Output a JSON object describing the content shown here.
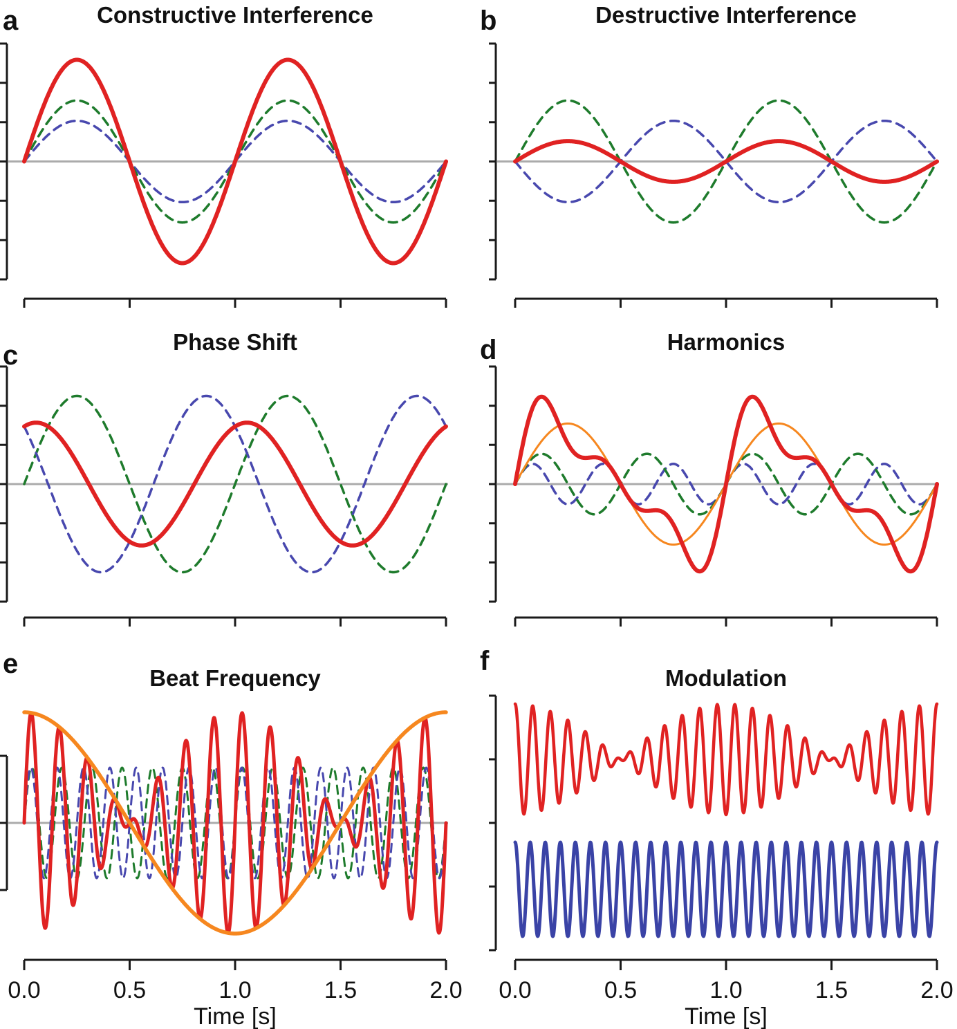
{
  "figure": {
    "xlabel": "Time [s]",
    "xticks": [
      "0.0",
      "0.5",
      "1.0",
      "1.5",
      "2.0"
    ]
  },
  "colors": {
    "red": "#E02222",
    "green": "#1E7B2C",
    "blue": "#4848AE",
    "orange": "#F6871F",
    "blue_solid": "#3A43A6",
    "zero_line": "#ABABAB",
    "axis": "#1A1A1A"
  },
  "chart_data": [
    {
      "id": "a",
      "label": "a",
      "title": "Constructive Interference",
      "type": "line",
      "xlim": [
        0,
        2
      ],
      "ylim": 2.9,
      "zero_line": true,
      "series": [
        {
          "name": "component-wave-1",
          "color": "blue",
          "dash": true,
          "width": 3.5,
          "kind": "sum",
          "terms": [
            {
              "a": 1.0,
              "f": 1,
              "p": 0
            }
          ]
        },
        {
          "name": "component-wave-2",
          "color": "green",
          "dash": true,
          "width": 3.5,
          "kind": "sum",
          "terms": [
            {
              "a": 1.5,
              "f": 1,
              "p": 0
            }
          ]
        },
        {
          "name": "sum-wave",
          "color": "red",
          "dash": false,
          "width": 6,
          "kind": "sum",
          "terms": [
            {
              "a": 2.5,
              "f": 1,
              "p": 0
            }
          ]
        }
      ]
    },
    {
      "id": "b",
      "label": "b",
      "title": "Destructive Interference",
      "type": "line",
      "xlim": [
        0,
        2
      ],
      "ylim": 2.9,
      "zero_line": true,
      "series": [
        {
          "name": "component-wave-1",
          "color": "blue",
          "dash": true,
          "width": 3.5,
          "kind": "sum",
          "terms": [
            {
              "a": 1.0,
              "f": 1,
              "p": 3.1416
            }
          ]
        },
        {
          "name": "component-wave-2",
          "color": "green",
          "dash": true,
          "width": 3.5,
          "kind": "sum",
          "terms": [
            {
              "a": 1.5,
              "f": 1,
              "p": 0
            }
          ]
        },
        {
          "name": "sum-wave",
          "color": "red",
          "dash": false,
          "width": 6,
          "kind": "sum",
          "terms": [
            {
              "a": 0.5,
              "f": 1,
              "p": 0
            }
          ]
        }
      ]
    },
    {
      "id": "c",
      "label": "c",
      "title": "Phase Shift",
      "type": "line",
      "xlim": [
        0,
        2
      ],
      "ylim": 2.0,
      "zero_line": true,
      "series": [
        {
          "name": "component-wave-1",
          "color": "green",
          "dash": true,
          "width": 3.5,
          "kind": "sum",
          "terms": [
            {
              "a": 1.5,
              "f": 1,
              "p": 0
            }
          ]
        },
        {
          "name": "component-wave-2",
          "color": "blue",
          "dash": true,
          "width": 3.5,
          "kind": "sum",
          "terms": [
            {
              "a": 1.5,
              "f": 1,
              "p": 2.43
            }
          ]
        },
        {
          "name": "sum-wave",
          "color": "red",
          "dash": false,
          "width": 6,
          "kind": "sum",
          "terms": [
            {
              "a": 1.5,
              "f": 1,
              "p": 0
            },
            {
              "a": 1.5,
              "f": 1,
              "p": 2.43
            }
          ]
        }
      ]
    },
    {
      "id": "d",
      "label": "d",
      "title": "Harmonics",
      "type": "line",
      "xlim": [
        0,
        2
      ],
      "ylim": 2.33,
      "zero_line": true,
      "series": [
        {
          "name": "third-harmonic",
          "color": "blue",
          "dash": true,
          "width": 3.5,
          "kind": "sum",
          "terms": [
            {
              "a": 0.4,
              "f": 3,
              "p": 0
            }
          ]
        },
        {
          "name": "second-harmonic",
          "color": "green",
          "dash": true,
          "width": 3.5,
          "kind": "sum",
          "terms": [
            {
              "a": 0.6,
              "f": 2,
              "p": 0
            }
          ]
        },
        {
          "name": "fundamental",
          "color": "orange",
          "dash": false,
          "width": 3,
          "kind": "sum",
          "terms": [
            {
              "a": 1.2,
              "f": 1,
              "p": 0
            }
          ]
        },
        {
          "name": "sum-wave",
          "color": "red",
          "dash": false,
          "width": 6,
          "kind": "sum",
          "terms": [
            {
              "a": 1.2,
              "f": 1,
              "p": 0
            },
            {
              "a": 0.6,
              "f": 2,
              "p": 0
            },
            {
              "a": 0.4,
              "f": 3,
              "p": 0
            }
          ]
        }
      ]
    },
    {
      "id": "e",
      "label": "e",
      "title": "Beat Frequency",
      "type": "line",
      "xlim": [
        0,
        2
      ],
      "ylim": 2.375,
      "zero_line": true,
      "series": [
        {
          "name": "wave-7hz",
          "color": "green",
          "dash": true,
          "width": 3,
          "kind": "sum",
          "terms": [
            {
              "a": 1.0,
              "f": 7,
              "p": 0
            }
          ]
        },
        {
          "name": "wave-8hz",
          "color": "blue",
          "dash": true,
          "width": 3,
          "kind": "sum",
          "terms": [
            {
              "a": 1.0,
              "f": 8,
              "p": 0
            }
          ]
        },
        {
          "name": "beat-sum-wave",
          "color": "red",
          "dash": false,
          "width": 5,
          "kind": "sum",
          "terms": [
            {
              "a": 1.0,
              "f": 7,
              "p": 0
            },
            {
              "a": 1.0,
              "f": 8,
              "p": 0
            }
          ]
        },
        {
          "name": "beat-envelope",
          "color": "orange",
          "dash": false,
          "width": 5.5,
          "kind": "sum",
          "terms": [
            {
              "a": 2.0,
              "f": 0.5,
              "p": 1.5708
            }
          ]
        }
      ]
    },
    {
      "id": "f",
      "label": "f",
      "title": "Modulation",
      "type": "line",
      "xlim": [
        0,
        2
      ],
      "ylim": 2.375,
      "zero_line": false,
      "series": [
        {
          "name": "amplitude-modulated-wave",
          "color": "red",
          "dash": false,
          "width": 4.5,
          "kind": "product",
          "offset": 1.15,
          "terms": [
            {
              "a": 1.0,
              "f": 0.5,
              "p": 1.5708
            },
            {
              "a": 1.0,
              "f": 12,
              "p": 1.5708
            }
          ]
        },
        {
          "name": "carrier-wave",
          "color": "blue_solid",
          "dash": false,
          "width": 5,
          "kind": "sum",
          "offset": -1.2,
          "terms": [
            {
              "a": 0.85,
              "f": 14,
              "p": 1.5708
            }
          ]
        }
      ]
    }
  ]
}
